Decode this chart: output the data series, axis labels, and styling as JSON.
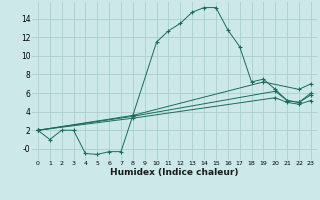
{
  "xlabel": "Humidex (Indice chaleur)",
  "background_color": "#cce8e8",
  "grid_color": "#aacfcf",
  "line_color": "#1a6b5a",
  "xlim": [
    -0.5,
    23.5
  ],
  "ylim": [
    -1.2,
    15.8
  ],
  "xticks": [
    0,
    1,
    2,
    3,
    4,
    5,
    6,
    7,
    8,
    9,
    10,
    11,
    12,
    13,
    14,
    15,
    16,
    17,
    18,
    19,
    20,
    21,
    22,
    23
  ],
  "yticks": [
    0,
    2,
    4,
    6,
    8,
    10,
    12,
    14
  ],
  "ytick_labels": [
    "-0",
    "2",
    "4",
    "6",
    "8",
    "10",
    "12",
    "14"
  ],
  "series_main": {
    "x": [
      0,
      1,
      2,
      3,
      4,
      5,
      6,
      7,
      8,
      10,
      11,
      12,
      13,
      14,
      15,
      16,
      17,
      18,
      19,
      20,
      21,
      22,
      23
    ],
    "y": [
      2.0,
      1.0,
      2.0,
      2.0,
      -0.5,
      -0.6,
      -0.3,
      -0.3,
      3.6,
      11.5,
      12.7,
      13.5,
      14.7,
      15.2,
      15.2,
      12.8,
      11.0,
      7.2,
      7.5,
      6.4,
      5.2,
      5.0,
      5.8
    ]
  },
  "series_linear": [
    {
      "x": [
        0,
        8,
        19,
        22,
        23
      ],
      "y": [
        2.0,
        3.6,
        7.2,
        6.4,
        7.0
      ]
    },
    {
      "x": [
        0,
        8,
        20,
        21,
        22,
        23
      ],
      "y": [
        2.0,
        3.5,
        6.2,
        5.2,
        5.0,
        6.0
      ]
    },
    {
      "x": [
        0,
        8,
        20,
        21,
        22,
        23
      ],
      "y": [
        2.0,
        3.3,
        5.5,
        5.0,
        4.8,
        5.2
      ]
    }
  ]
}
